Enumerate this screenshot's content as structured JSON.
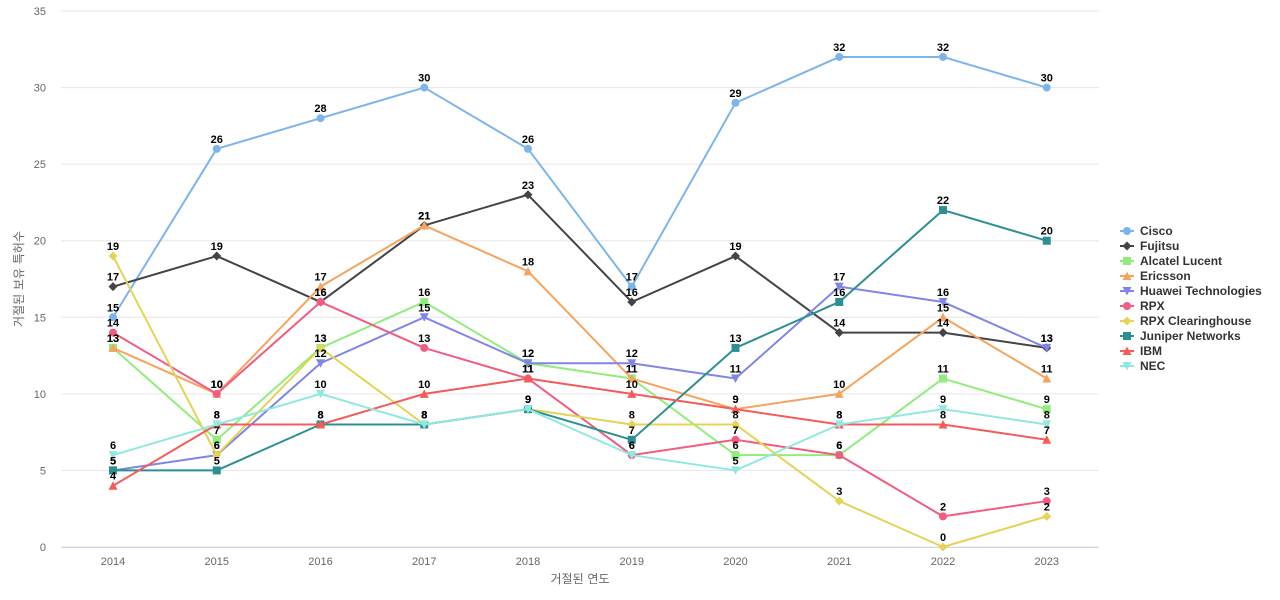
{
  "chart_data": {
    "type": "line",
    "title": "",
    "xlabel": "거절된 연도",
    "ylabel": "거절된 보유 특허수",
    "ylim": [
      0,
      35
    ],
    "yticks": [
      0,
      5,
      10,
      15,
      20,
      25,
      30,
      35
    ],
    "grid": true,
    "legend_position": "right",
    "x": [
      "2014",
      "2015",
      "2016",
      "2017",
      "2018",
      "2019",
      "2020",
      "2021",
      "2022",
      "2023"
    ],
    "series": [
      {
        "name": "Cisco",
        "color": "#7cb5ec",
        "marker": "circle",
        "values": [
          15,
          26,
          28,
          30,
          26,
          17,
          29,
          32,
          32,
          30
        ]
      },
      {
        "name": "Fujitsu",
        "color": "#434348",
        "marker": "diamond",
        "values": [
          17,
          19,
          16,
          21,
          23,
          16,
          19,
          14,
          14,
          13
        ]
      },
      {
        "name": "Alcatel Lucent",
        "color": "#90ed7d",
        "marker": "square",
        "values": [
          13,
          7,
          13,
          16,
          12,
          11,
          6,
          6,
          11,
          9
        ]
      },
      {
        "name": "Ericsson",
        "color": "#f7a35c",
        "marker": "triangle",
        "values": [
          13,
          10,
          17,
          21,
          18,
          11,
          9,
          10,
          15,
          11
        ]
      },
      {
        "name": "Huawei Technologies",
        "color": "#8085e9",
        "marker": "triangle-down",
        "values": [
          5,
          6,
          12,
          15,
          12,
          12,
          11,
          17,
          16,
          13
        ]
      },
      {
        "name": "RPX",
        "color": "#f15c80",
        "marker": "circle",
        "values": [
          14,
          10,
          16,
          13,
          11,
          6,
          7,
          6,
          2,
          3
        ]
      },
      {
        "name": "RPX Clearinghouse",
        "color": "#e4d354",
        "marker": "diamond",
        "values": [
          19,
          6,
          13,
          8,
          9,
          8,
          8,
          3,
          0,
          2
        ]
      },
      {
        "name": "Juniper Networks",
        "color": "#2b908f",
        "marker": "square",
        "values": [
          5,
          5,
          8,
          8,
          9,
          7,
          13,
          16,
          22,
          20
        ]
      },
      {
        "name": "IBM",
        "color": "#f45b5b",
        "marker": "triangle",
        "values": [
          4,
          8,
          8,
          10,
          11,
          10,
          9,
          8,
          8,
          7
        ]
      },
      {
        "name": "NEC",
        "color": "#91e8e1",
        "marker": "triangle-down",
        "values": [
          6,
          8,
          10,
          8,
          9,
          6,
          5,
          8,
          9,
          8
        ]
      }
    ]
  }
}
